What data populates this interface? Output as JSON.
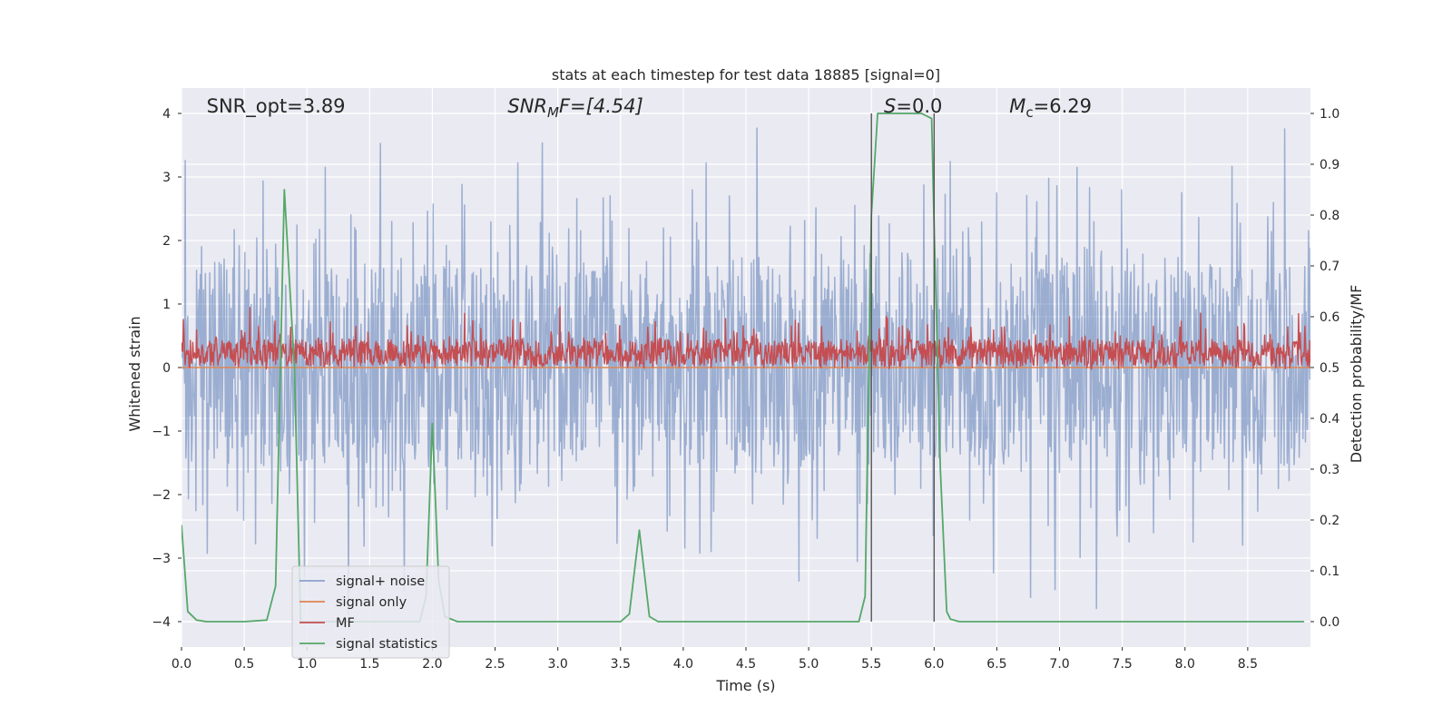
{
  "chart_data": {
    "type": "line",
    "title": "stats at each timestep for test data 18885 [signal=0]",
    "xlabel": "Time (s)",
    "ylabel_left": "Whitened strain",
    "ylabel_right": "Detection probability/MF",
    "xlim": [
      0.0,
      9.0
    ],
    "ylim_left": [
      -4.4,
      4.4
    ],
    "ylim_right": [
      -0.05,
      1.05
    ],
    "x_ticks": [
      0.0,
      0.5,
      1.0,
      1.5,
      2.0,
      2.5,
      3.0,
      3.5,
      4.0,
      4.5,
      5.0,
      5.5,
      6.0,
      6.5,
      7.0,
      7.5,
      8.0,
      8.5
    ],
    "x_tick_labels": [
      "0.0",
      "0.5",
      "1.0",
      "1.5",
      "2.0",
      "2.5",
      "3.0",
      "3.5",
      "4.0",
      "4.5",
      "5.0",
      "5.5",
      "6.0",
      "6.5",
      "7.0",
      "7.5",
      "8.0",
      "8.5"
    ],
    "y_ticks_left": [
      4,
      3,
      2,
      1,
      0,
      -1,
      -2,
      -3,
      -4
    ],
    "y_tick_labels_left": [
      "4",
      "3",
      "2",
      "1",
      "0",
      "−1",
      "−2",
      "−3",
      "−4"
    ],
    "y_ticks_right": [
      1.0,
      0.9,
      0.8,
      0.7,
      0.6,
      0.5,
      0.4,
      0.3,
      0.2,
      0.1,
      0.0
    ],
    "y_tick_labels_right": [
      "1.0",
      "0.9",
      "0.8",
      "0.7",
      "0.6",
      "0.5",
      "0.4",
      "0.3",
      "0.2",
      "0.1",
      "0.0"
    ],
    "grid": true,
    "legend_placement": "lower-left",
    "annotations": {
      "snr_opt": {
        "label": "SNR_opt=3.89",
        "x": 0.2
      },
      "snr_mf": {
        "label_parts": [
          "SNR",
          "M",
          "F=[4.54]"
        ],
        "x": 2.6
      },
      "s": {
        "label": "S=0.0",
        "x": 5.6
      },
      "mc": {
        "label_parts": [
          "M",
          "c",
          "=6.29"
        ],
        "x": 6.6
      }
    },
    "vertical_lines": [
      5.5,
      6.0
    ],
    "vertical_line_range_right": [
      0.0,
      1.0
    ],
    "series": [
      {
        "name": "signal+ noise",
        "color": "#4c72b0",
        "axis": "left",
        "style": "noise",
        "points": 1800,
        "typical_range": [
          -1.5,
          1.6
        ],
        "extreme_range": [
          -4.0,
          4.0
        ],
        "seed": 18885
      },
      {
        "name": "signal only",
        "color": "#dd8452",
        "axis": "left",
        "style": "flat",
        "value": 0
      },
      {
        "name": "MF",
        "color": "#c44e52",
        "axis": "right",
        "style": "noise",
        "points": 1800,
        "typical_range": [
          0.505,
          0.555
        ],
        "extreme_range": [
          0.495,
          0.625
        ],
        "seed": 4254
      },
      {
        "name": "signal statistics",
        "color": "#55a868",
        "axis": "right",
        "style": "line",
        "x": [
          0.0,
          0.05,
          0.12,
          0.2,
          0.5,
          0.68,
          0.75,
          0.82,
          0.9,
          0.95,
          1.0,
          1.5,
          1.9,
          1.95,
          2.0,
          2.05,
          2.1,
          2.2,
          3.0,
          3.5,
          3.57,
          3.65,
          3.73,
          3.8,
          4.0,
          5.0,
          5.4,
          5.45,
          5.5,
          5.55,
          5.9,
          5.98,
          6.0,
          6.05,
          6.1,
          6.13,
          6.2,
          8.0,
          8.95
        ],
        "y": [
          0.19,
          0.02,
          0.003,
          0.0,
          0.0,
          0.003,
          0.07,
          0.85,
          0.5,
          0.0,
          0.0,
          0.0,
          0.0,
          0.05,
          0.39,
          0.08,
          0.01,
          0.0,
          0.0,
          0.0,
          0.015,
          0.18,
          0.01,
          0.0,
          0.0,
          0.0,
          0.0,
          0.05,
          0.8,
          1.0,
          1.0,
          0.99,
          0.78,
          0.3,
          0.02,
          0.005,
          0.0,
          0.0,
          0.0
        ]
      }
    ]
  },
  "colors": {
    "plot_background": "#eaeaf2",
    "grid": "#ffffff",
    "vertical_line": "#555555"
  }
}
